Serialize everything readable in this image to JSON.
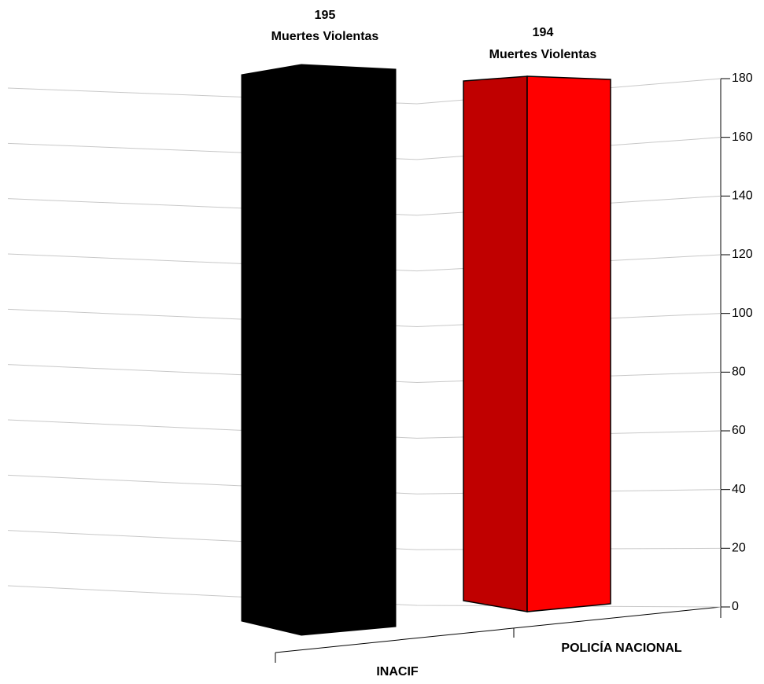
{
  "chart_data": {
    "type": "bar3d",
    "categories": [
      "INACIF",
      "POLICÍA NACIONAL"
    ],
    "values": [
      195,
      194
    ],
    "value_label_text": "Muertes Violentas",
    "colors": [
      "#000000",
      "#ff0000"
    ],
    "ylim": [
      0,
      180
    ],
    "yticks": [
      0,
      20,
      40,
      60,
      80,
      100,
      120,
      140,
      160,
      180
    ],
    "y_axis_side": "right",
    "grid": true
  }
}
